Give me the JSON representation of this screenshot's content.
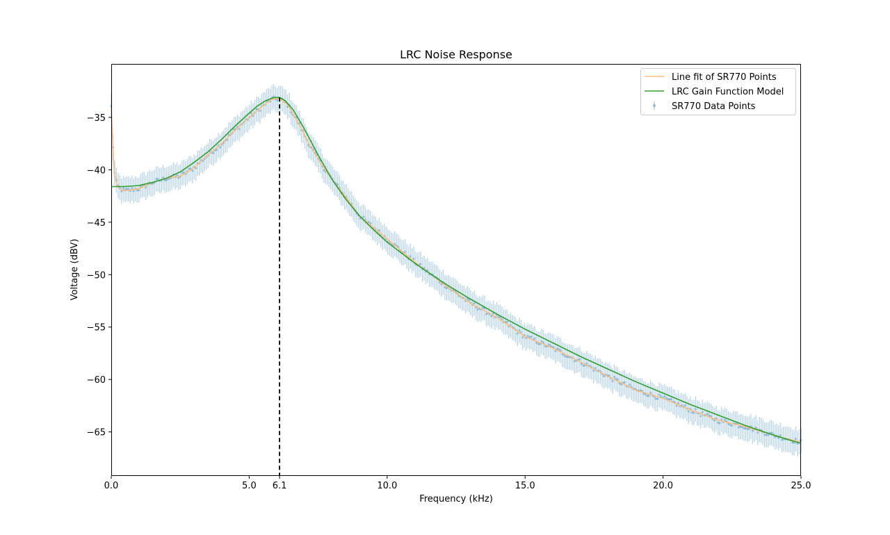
{
  "chart_data": {
    "type": "line",
    "title": "LRC Noise Response",
    "xlabel": "Frequency (kHz)",
    "ylabel": "Voltage (dBV)",
    "xlim": [
      0,
      25
    ],
    "ylim": [
      -69.2,
      -29.9
    ],
    "x_ticks": [
      0.0,
      5.0,
      6.1,
      10.0,
      15.0,
      20.0,
      25.0
    ],
    "x_tick_labels": [
      "0.0",
      "5.0",
      "6.1",
      "10.0",
      "15.0",
      "20.0",
      "25.0"
    ],
    "y_ticks": [
      -35,
      -40,
      -45,
      -50,
      -55,
      -60,
      -65
    ],
    "y_tick_labels": [
      "−35",
      "−40",
      "−45",
      "−50",
      "−55",
      "−60",
      "−65"
    ],
    "grid": false,
    "legend_position": "top-right",
    "resonance_marker": {
      "x": 6.1,
      "style": "dashed",
      "color": "#000000"
    },
    "series": [
      {
        "name": "Line fit of SR770 Points",
        "kind": "line",
        "color": "#ffbb78",
        "x": [
          0,
          0.1,
          0.2,
          0.3,
          0.5,
          1,
          1.5,
          2,
          2.5,
          3,
          3.5,
          4,
          4.5,
          5,
          5.5,
          5.8,
          6.1,
          6.4,
          6.8,
          7.2,
          7.6,
          8,
          8.5,
          9,
          9.5,
          10,
          11,
          12,
          13,
          14,
          15,
          16,
          17,
          18,
          19,
          20,
          21,
          22,
          23,
          24,
          25
        ],
        "values": [
          -34.0,
          -40.0,
          -41.4,
          -41.8,
          -42.0,
          -41.8,
          -41.2,
          -40.8,
          -40.6,
          -39.8,
          -38.6,
          -37.5,
          -36.2,
          -35.0,
          -33.9,
          -33.3,
          -33.2,
          -33.8,
          -35.6,
          -37.7,
          -39.4,
          -40.9,
          -42.6,
          -44.4,
          -45.5,
          -46.6,
          -48.8,
          -50.8,
          -52.7,
          -54.1,
          -55.9,
          -57.0,
          -58.3,
          -59.7,
          -61.0,
          -61.8,
          -62.9,
          -63.9,
          -64.5,
          -65.3,
          -66.0
        ]
      },
      {
        "name": "LRC Gain Function Model",
        "kind": "line",
        "color": "#2ca02c",
        "x": [
          0,
          0.5,
          1,
          1.5,
          2,
          2.5,
          3,
          3.5,
          4,
          4.5,
          5,
          5.3,
          5.6,
          5.9,
          6.1,
          6.3,
          6.6,
          7,
          7.5,
          8,
          8.5,
          9,
          9.5,
          10,
          11,
          12,
          13,
          14,
          15,
          16,
          17,
          18,
          19,
          20,
          21,
          22,
          23,
          24,
          25
        ],
        "values": [
          -41.6,
          -41.6,
          -41.5,
          -41.2,
          -40.8,
          -40.2,
          -39.3,
          -38.3,
          -37.1,
          -35.8,
          -34.6,
          -33.9,
          -33.4,
          -33.1,
          -33.1,
          -33.4,
          -34.3,
          -36.1,
          -38.6,
          -40.9,
          -42.8,
          -44.4,
          -45.7,
          -46.9,
          -48.9,
          -50.7,
          -52.3,
          -53.8,
          -55.2,
          -56.5,
          -57.8,
          -59.0,
          -60.2,
          -61.3,
          -62.4,
          -63.4,
          -64.4,
          -65.3,
          -66.1
        ]
      },
      {
        "name": "SR770 Data Points",
        "kind": "errorbar",
        "color": "#1f77b4",
        "error_dbv": 1.2,
        "num_points": 400
      }
    ]
  }
}
